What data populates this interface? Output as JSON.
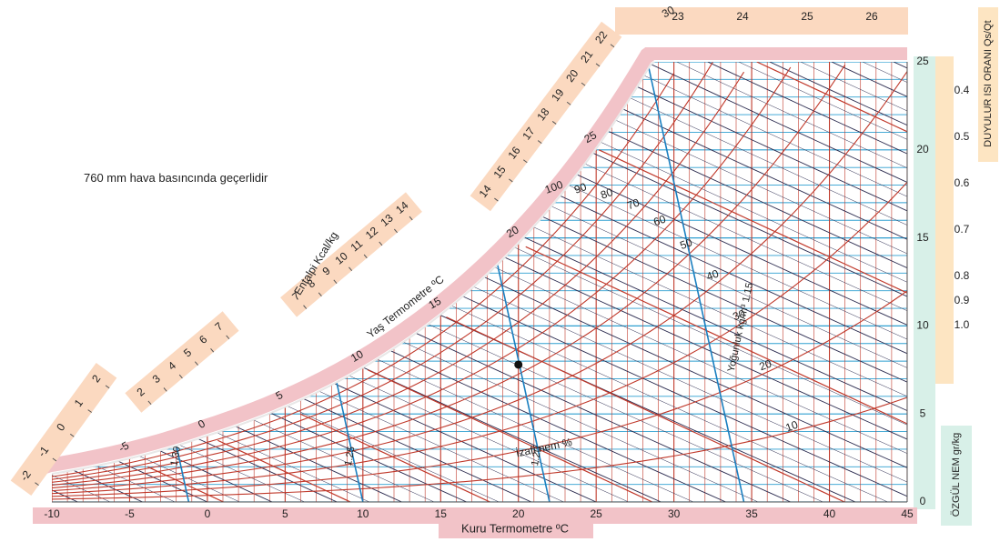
{
  "note": "760 mm hava basıncında geçerlidir",
  "colors": {
    "rh_lines": "#c0392b",
    "dry_bulb_lines": "#c0392b",
    "moisture_lines": "#2e9fd0",
    "enthalpy_lines": "#2b2b4f",
    "volume_lines": "#1a7fc0",
    "saturation_band": "#f2c3c8",
    "bottom_band": "#f2c3c8",
    "enthalpy_scale": "#fbd9c0",
    "right_moisture_band": "#d8f0e8",
    "shr_band": "#fde5c2"
  },
  "chart_data": {
    "type": "psychrometric",
    "xlabel": "Kuru Termometre ºC",
    "ylabel": "ÖZGÜL NEM gr/kg",
    "shr_label": "DUYULUR ISI ORANI Qs/Qt",
    "enthalpy_label": "Entalpi Kcal/kg",
    "wet_bulb_label": "Yaş Termometre ºC",
    "rh_label": "İzafi nem %",
    "volume_label": "Yoğunluk kg/m³",
    "x_ticks": [
      -10,
      -5,
      0,
      5,
      10,
      15,
      20,
      25,
      30,
      35,
      40,
      45
    ],
    "y_ticks": [
      0,
      5,
      10,
      15,
      20,
      25
    ],
    "xlim": [
      -10,
      45
    ],
    "ylim": [
      0,
      25
    ],
    "rh_lines": [
      10,
      20,
      30,
      40,
      50,
      60,
      70,
      80,
      90,
      100
    ],
    "rh_tick_labels": [
      "10",
      "20",
      "30",
      "40",
      "50",
      "60",
      "70",
      "80",
      "90",
      "100"
    ],
    "wet_bulb_labels": [
      "-5",
      "0",
      "5",
      "10",
      "15",
      "20",
      "25",
      "30"
    ],
    "wet_bulb_values": [
      -5,
      0,
      5,
      10,
      15,
      20,
      25,
      30
    ],
    "volume_lines": [
      {
        "label": "1.30",
        "tdry_at_w0": -1.2
      },
      {
        "label": "1.25",
        "tdry_at_w0": 10
      },
      {
        "label": "1.20",
        "tdry_at_w0": 22
      },
      {
        "label": "1.15",
        "tdry_at_w0": 34.5
      }
    ],
    "shr_ticks": [
      "0.4",
      "0.5",
      "0.6",
      "0.7",
      "0.8",
      "0.9",
      "1.0"
    ],
    "enthalpy_scale_groups": [
      [
        "-2",
        "-1",
        "0",
        "1",
        "2"
      ],
      [
        "2",
        "3",
        "4",
        "5",
        "6",
        "7"
      ],
      [
        "7",
        "8",
        "9",
        "10",
        "11",
        "12",
        "13",
        "14"
      ],
      [
        "14",
        "15",
        "16",
        "17",
        "18",
        "19",
        "20",
        "21",
        "22"
      ],
      [
        "23",
        "24",
        "25",
        "26"
      ]
    ],
    "marked_point": {
      "tdry": 20,
      "w": 7.8
    },
    "grid": true
  }
}
